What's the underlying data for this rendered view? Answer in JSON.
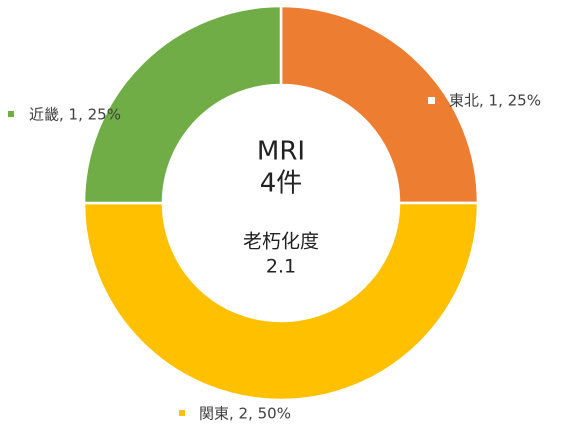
{
  "chart_data": {
    "type": "donut",
    "categories": [
      "東北",
      "関東",
      "近畿"
    ],
    "values": [
      1,
      2,
      1
    ],
    "value_labels": [
      "東北, 1, 25%",
      "関東, 2, 50%",
      "近畿, 1, 25%"
    ],
    "colors": [
      "#ed7d31",
      "#ffc000",
      "#70ad47"
    ],
    "center_texts": [
      "MRI",
      "4件",
      "老朽化度",
      "2.1"
    ]
  }
}
